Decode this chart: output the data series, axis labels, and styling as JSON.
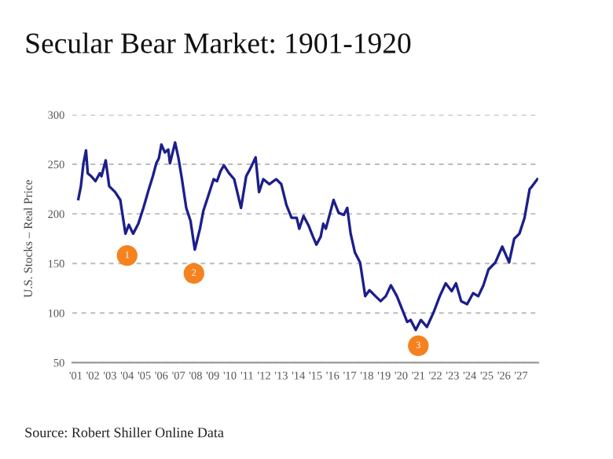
{
  "chart_data": {
    "type": "line",
    "title": "Secular Bear Market: 1901-1920",
    "ylabel": "U.S. Stocks – Real Price",
    "annotations": [
      {
        "text": "1",
        "x": 1904.0,
        "y": 158
      },
      {
        "text": "2",
        "x": 1907.9,
        "y": 140
      },
      {
        "text": "3",
        "x": 1921.0,
        "y": 67
      },
      "Source: Robert Shiller Online Data"
    ],
    "xlim": [
      1900.8,
      1928.0
    ],
    "ylim": [
      50,
      300
    ],
    "yticks": [
      50,
      100,
      150,
      200,
      250,
      300
    ],
    "xticks": [
      {
        "value": 1901,
        "label": "'01"
      },
      {
        "value": 1902,
        "label": "'02"
      },
      {
        "value": 1903,
        "label": "'03"
      },
      {
        "value": 1904,
        "label": "'04"
      },
      {
        "value": 1905,
        "label": "'05"
      },
      {
        "value": 1906,
        "label": "'06"
      },
      {
        "value": 1907,
        "label": "'07"
      },
      {
        "value": 1908,
        "label": "'08"
      },
      {
        "value": 1909,
        "label": "'09"
      },
      {
        "value": 1910,
        "label": "'10"
      },
      {
        "value": 1911,
        "label": "'11"
      },
      {
        "value": 1912,
        "label": "'12"
      },
      {
        "value": 1913,
        "label": "'13"
      },
      {
        "value": 1914,
        "label": "'14"
      },
      {
        "value": 1915,
        "label": "'15"
      },
      {
        "value": 1916,
        "label": "'16"
      },
      {
        "value": 1917,
        "label": "'17"
      },
      {
        "value": 1918,
        "label": "'18"
      },
      {
        "value": 1919,
        "label": "'19"
      },
      {
        "value": 1920,
        "label": "'20"
      },
      {
        "value": 1921,
        "label": "'21"
      },
      {
        "value": 1922,
        "label": "'22"
      },
      {
        "value": 1923,
        "label": "'23"
      },
      {
        "value": 1924,
        "label": "'24"
      },
      {
        "value": 1925,
        "label": "'25"
      },
      {
        "value": 1926,
        "label": "'26"
      },
      {
        "value": 1927,
        "label": "'27"
      }
    ],
    "grid": "y",
    "marker": "none",
    "line_style": "solid",
    "series": [
      {
        "color": "#1c1f8a",
        "x": [
          1901.15,
          1901.3,
          1901.45,
          1901.6,
          1901.7,
          1901.9,
          1902.15,
          1902.4,
          1902.5,
          1902.75,
          1902.95,
          1903.3,
          1903.6,
          1903.9,
          1904.1,
          1904.35,
          1904.65,
          1904.95,
          1905.25,
          1905.5,
          1905.7,
          1905.85,
          1906.0,
          1906.2,
          1906.4,
          1906.5,
          1906.8,
          1907.0,
          1907.2,
          1907.45,
          1907.7,
          1907.95,
          1908.25,
          1908.45,
          1908.75,
          1909.05,
          1909.25,
          1909.45,
          1909.65,
          1909.95,
          1910.25,
          1910.65,
          1910.95,
          1911.2,
          1911.5,
          1911.7,
          1911.95,
          1912.3,
          1912.7,
          1913.0,
          1913.3,
          1913.6,
          1913.9,
          1914.05,
          1914.3,
          1914.6,
          1914.85,
          1915.05,
          1915.3,
          1915.45,
          1915.6,
          1915.85,
          1916.05,
          1916.35,
          1916.65,
          1916.85,
          1917.05,
          1917.3,
          1917.6,
          1917.9,
          1918.15,
          1918.5,
          1918.8,
          1919.1,
          1919.4,
          1919.75,
          1920.05,
          1920.35,
          1920.55,
          1920.85,
          1921.15,
          1921.5,
          1921.9,
          1922.25,
          1922.6,
          1922.95,
          1923.2,
          1923.5,
          1923.85,
          1924.2,
          1924.5,
          1924.8,
          1925.1,
          1925.5,
          1925.9,
          1926.3,
          1926.6,
          1926.9,
          1927.2,
          1927.5,
          1927.65,
          1927.95
        ],
        "values": [
          215,
          228,
          251,
          264,
          241,
          238,
          233,
          241,
          238,
          254,
          228,
          222,
          214,
          180,
          189,
          180,
          190,
          206,
          224,
          238,
          251,
          256,
          270,
          262,
          265,
          251,
          272,
          256,
          235,
          206,
          193,
          164,
          185,
          203,
          219,
          235,
          233,
          243,
          249,
          241,
          235,
          206,
          238,
          246,
          257,
          222,
          235,
          230,
          235,
          230,
          209,
          196,
          196,
          185,
          198,
          188,
          177,
          169,
          177,
          190,
          185,
          201,
          214,
          201,
          199,
          206,
          180,
          161,
          151,
          117,
          123,
          117,
          112,
          117,
          128,
          117,
          104,
          91,
          93,
          83,
          93,
          86,
          101,
          117,
          130,
          122,
          130,
          112,
          109,
          120,
          117,
          128,
          144,
          151,
          167,
          151,
          175,
          180,
          196,
          225,
          228,
          235
        ]
      }
    ]
  }
}
